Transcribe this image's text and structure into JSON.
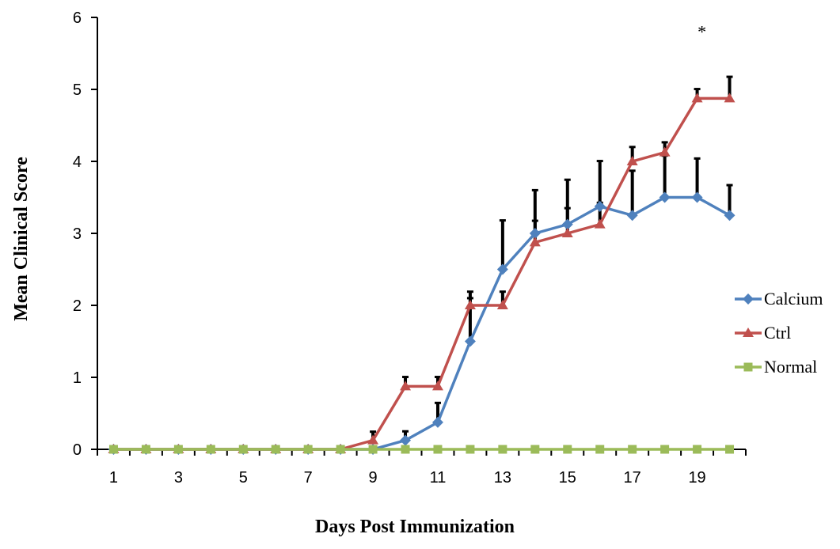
{
  "chart_data": {
    "type": "line",
    "title": "",
    "xlabel": "Days Post Immunization",
    "ylabel": "Mean Clinical Score",
    "x": [
      1,
      2,
      3,
      4,
      5,
      6,
      7,
      8,
      9,
      10,
      11,
      12,
      13,
      14,
      15,
      16,
      17,
      18,
      19,
      20
    ],
    "x_tick_labels": [
      "1",
      "3",
      "5",
      "7",
      "9",
      "11",
      "13",
      "15",
      "17",
      "19"
    ],
    "x_tick_values": [
      1,
      3,
      5,
      7,
      9,
      11,
      13,
      15,
      17,
      19
    ],
    "y_tick_labels": [
      "0",
      "1",
      "2",
      "3",
      "4",
      "5",
      "6"
    ],
    "ylim": [
      0,
      6
    ],
    "xlim": [
      0.5,
      20.5
    ],
    "grid": false,
    "legend_position": "right",
    "series": [
      {
        "name": "Calcium",
        "color": "#4F81BD",
        "marker": "diamond",
        "values": [
          0,
          0,
          0,
          0,
          0,
          0,
          0,
          0,
          0,
          0.125,
          0.375,
          1.5,
          2.5,
          3.0,
          3.125,
          3.375,
          3.25,
          3.5,
          3.5,
          3.25
        ],
        "error": [
          0,
          0,
          0,
          0,
          0,
          0,
          0,
          0,
          0,
          0.125,
          0.27,
          0.6,
          0.68,
          0.6,
          0.62,
          0.63,
          0.62,
          0.58,
          0.54,
          0.42
        ]
      },
      {
        "name": "Ctrl",
        "color": "#C0504D",
        "marker": "triangle",
        "values": [
          0,
          0,
          0,
          0,
          0,
          0,
          0,
          0,
          0.125,
          0.875,
          0.875,
          2.0,
          2.0,
          2.875,
          3.0,
          3.125,
          4.0,
          4.125,
          4.875,
          4.875
        ],
        "error": [
          0,
          0,
          0,
          0,
          0,
          0,
          0,
          0,
          0.12,
          0.13,
          0.13,
          0.19,
          0.19,
          0.3,
          0.35,
          0.3,
          0.2,
          0.14,
          0.13,
          0.3
        ]
      },
      {
        "name": "Normal",
        "color": "#9BBB59",
        "marker": "square",
        "values": [
          0,
          0,
          0,
          0,
          0,
          0,
          0,
          0,
          0,
          0,
          0,
          0,
          0,
          0,
          0,
          0,
          0,
          0,
          0,
          0
        ]
      }
    ],
    "annotations": [
      {
        "text": "*",
        "x": 19,
        "y": 5.83
      }
    ]
  }
}
